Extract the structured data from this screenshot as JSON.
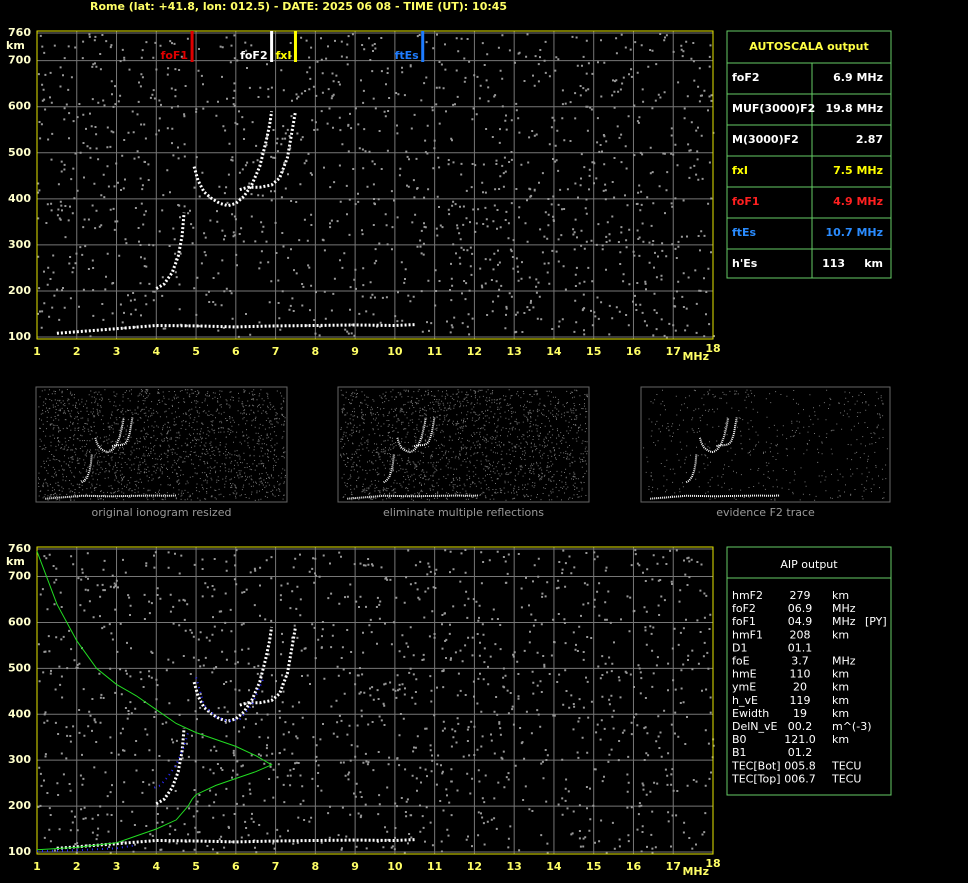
{
  "header": "Rome (lat: +41.8, lon: 012.5) - DATE: 2025 06 08 - TIME (UT): 10:45",
  "chart_data": [
    {
      "type": "ionogram",
      "x_unit": "MHz",
      "y_unit": "km",
      "xlim": [
        1,
        18
      ],
      "ylim": [
        100,
        760
      ],
      "xticks": [
        1,
        2,
        3,
        4,
        5,
        6,
        7,
        8,
        9,
        10,
        11,
        12,
        13,
        14,
        15,
        16,
        17,
        18
      ],
      "yticks": [
        100,
        200,
        300,
        400,
        500,
        600,
        700,
        760
      ],
      "grid": true,
      "markers": [
        {
          "name": "foF1",
          "value": 4.9,
          "color": "#e00000"
        },
        {
          "name": "foF2",
          "value": 6.9,
          "color": "#ffffff"
        },
        {
          "name": "fxI",
          "value": 7.5,
          "color": "#ffff00"
        },
        {
          "name": "ftEs",
          "value": 10.7,
          "color": "#1e7cff"
        }
      ],
      "traces": [
        {
          "color": "#ffffff",
          "x": [
            4.0,
            4.2,
            4.4,
            4.55,
            4.65,
            4.7
          ],
          "values": [
            205,
            215,
            240,
            275,
            320,
            370
          ]
        },
        {
          "color": "#ffffff",
          "x": [
            4.95,
            5.05,
            5.2,
            5.4,
            5.6,
            5.8,
            6.0,
            6.2,
            6.4,
            6.6,
            6.75,
            6.85,
            6.9
          ],
          "values": [
            470,
            440,
            415,
            400,
            390,
            385,
            390,
            405,
            430,
            470,
            520,
            560,
            590
          ]
        },
        {
          "color": "#ffffff",
          "x": [
            6.1,
            6.3,
            6.6,
            6.9,
            7.1,
            7.3,
            7.4,
            7.5
          ],
          "values": [
            420,
            425,
            425,
            430,
            445,
            490,
            540,
            590
          ]
        },
        {
          "color": "#ffffff",
          "x": [
            1.5,
            3,
            4,
            5,
            6,
            7,
            8,
            9,
            10,
            10.5
          ],
          "values": [
            108,
            118,
            125,
            124,
            122,
            124,
            125,
            126,
            125,
            127
          ]
        }
      ]
    },
    {
      "type": "ionogram",
      "x_unit": "MHz",
      "y_unit": "km",
      "xlim": [
        1,
        18
      ],
      "ylim": [
        100,
        760
      ],
      "xticks": [
        1,
        2,
        3,
        4,
        5,
        6,
        7,
        8,
        9,
        10,
        11,
        12,
        13,
        14,
        15,
        16,
        17,
        18
      ],
      "yticks": [
        100,
        200,
        300,
        400,
        500,
        600,
        700,
        760
      ],
      "grid": true,
      "markers": [],
      "traces": [
        {
          "color": "#ffffff",
          "x": [
            4.0,
            4.2,
            4.4,
            4.55,
            4.65,
            4.7
          ],
          "values": [
            205,
            215,
            240,
            275,
            320,
            370
          ]
        },
        {
          "color": "#ffffff",
          "x": [
            4.95,
            5.05,
            5.2,
            5.4,
            5.6,
            5.8,
            6.0,
            6.2,
            6.4,
            6.6,
            6.75,
            6.85,
            6.9
          ],
          "values": [
            470,
            440,
            415,
            400,
            390,
            385,
            390,
            405,
            430,
            470,
            520,
            560,
            590
          ]
        },
        {
          "color": "#ffffff",
          "x": [
            6.1,
            6.3,
            6.6,
            6.9,
            7.1,
            7.3,
            7.4,
            7.5
          ],
          "values": [
            420,
            425,
            425,
            430,
            445,
            490,
            540,
            590
          ]
        },
        {
          "color": "#ffffff",
          "x": [
            1.5,
            3,
            4,
            5,
            6,
            7,
            8,
            9,
            10,
            10.5
          ],
          "values": [
            108,
            118,
            125,
            124,
            122,
            124,
            125,
            126,
            125,
            127
          ]
        },
        {
          "color": "#2a2aff",
          "x": [
            3.95,
            4.1,
            4.3,
            4.5,
            4.7,
            4.8
          ],
          "values": [
            240,
            245,
            265,
            290,
            330,
            360
          ]
        },
        {
          "color": "#2a2aff",
          "x": [
            5.0,
            5.2,
            5.5,
            5.8,
            6.1,
            6.4,
            6.7
          ],
          "values": [
            480,
            420,
            395,
            385,
            390,
            420,
            480
          ]
        },
        {
          "color": "#2a2aff",
          "x": [
            1.0,
            2.0,
            3.0,
            3.5
          ],
          "values": [
            102,
            104,
            108,
            115
          ]
        }
      ],
      "profile": {
        "color": "#22dd22",
        "x": [
          1.0,
          1.5,
          2.0,
          2.5,
          3.0,
          3.5,
          4.0,
          4.5,
          5.0,
          5.5,
          6.0,
          6.5,
          6.9,
          6.5,
          6.0,
          5.5,
          5.0,
          4.9,
          4.8,
          4.5,
          4.0,
          3.5,
          3.0,
          2.0,
          1.0
        ],
        "values": [
          755,
          640,
          560,
          500,
          465,
          440,
          410,
          380,
          360,
          345,
          330,
          310,
          290,
          275,
          260,
          245,
          225,
          215,
          200,
          170,
          150,
          135,
          120,
          110,
          105
        ]
      }
    }
  ],
  "thumbnails": [
    {
      "caption": "original ionogram resized"
    },
    {
      "caption": "eliminate multiple reflections"
    },
    {
      "caption": "evidence F2 trace"
    }
  ],
  "autoscala": {
    "title": "AUTOSCALA output",
    "rows": [
      {
        "name": "foF2",
        "value": "6.9 MHz",
        "color": "#ffffff"
      },
      {
        "name": "MUF(3000)F2",
        "value": "19.8 MHz",
        "color": "#ffffff"
      },
      {
        "name": "M(3000)F2",
        "value": "2.87",
        "color": "#ffffff"
      },
      {
        "name": "fxI",
        "value": "7.5 MHz",
        "color": "#ffff00"
      },
      {
        "name": "foF1",
        "value": "4.9 MHz",
        "color": "#ff2020"
      },
      {
        "name": "ftEs",
        "value": "10.7 MHz",
        "color": "#2a8cff"
      },
      {
        "name": "h'Es",
        "value": "113     km",
        "color": "#ffffff"
      }
    ]
  },
  "aip": {
    "title": "AIP output",
    "rows": [
      [
        "hmF2",
        "279",
        "km",
        ""
      ],
      [
        "foF2",
        "06.9",
        "MHz",
        ""
      ],
      [
        "foF1",
        "04.9",
        "MHz",
        "[PY]"
      ],
      [
        "hmF1",
        "208",
        "km",
        ""
      ],
      [
        "D1",
        "01.1",
        "",
        ""
      ],
      [
        "foE",
        "3.7",
        "MHz",
        ""
      ],
      [
        "hmE",
        "110",
        "km",
        ""
      ],
      [
        "ymE",
        "20",
        "km",
        ""
      ],
      [
        "h_vE",
        "119",
        "km",
        ""
      ],
      [
        "Ewidth",
        "19",
        "km",
        ""
      ],
      [
        "DelN_vE",
        "00.2",
        "m^(-3)",
        ""
      ],
      [
        "B0",
        "121.0",
        "km",
        ""
      ],
      [
        "B1",
        "01.2",
        "",
        ""
      ],
      [
        "TEC[Bot]",
        "005.8",
        "TECU",
        ""
      ],
      [
        "TEC[Top]",
        "006.7",
        "TECU",
        ""
      ]
    ]
  }
}
